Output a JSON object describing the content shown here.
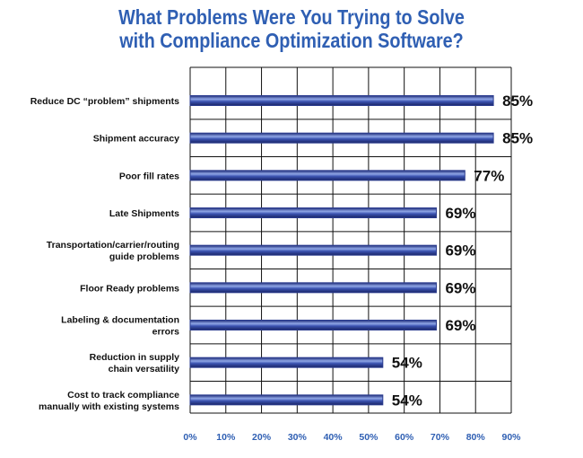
{
  "chart_data": {
    "type": "bar",
    "orientation": "horizontal",
    "title_lines": [
      "What Problems Were You Trying to Solve",
      "with Compliance Optimization Software?"
    ],
    "categories": [
      [
        "Reduce DC “problem” shipments"
      ],
      [
        "Shipment accuracy"
      ],
      [
        "Poor fill rates"
      ],
      [
        "Late Shipments"
      ],
      [
        "Transportation/carrier/routing",
        "guide problems"
      ],
      [
        "Floor Ready problems"
      ],
      [
        "Labeling & documentation",
        "errors"
      ],
      [
        "Reduction in supply",
        "chain versatility"
      ],
      [
        "Cost to track compliance",
        "manually with existing systems"
      ]
    ],
    "values": [
      85,
      85,
      77,
      69,
      69,
      69,
      69,
      54,
      54
    ],
    "value_labels": [
      "85%",
      "85%",
      "77%",
      "69%",
      "69%",
      "69%",
      "69%",
      "54%",
      "54%"
    ],
    "xlim": [
      0,
      90
    ],
    "xticks": [
      0,
      10,
      20,
      30,
      40,
      50,
      60,
      70,
      80,
      90
    ],
    "xtick_labels": [
      "0%",
      "10%",
      "20%",
      "30%",
      "40%",
      "50%",
      "60%",
      "70%",
      "80%",
      "90%"
    ],
    "grid": true,
    "legend": "none",
    "colors": {
      "bar": "#2b3c8f",
      "bar_highlight": "#8fa6e6",
      "title": "#2f5fb3",
      "tick_label": "#2f5fb3",
      "grid": "#111111"
    }
  }
}
